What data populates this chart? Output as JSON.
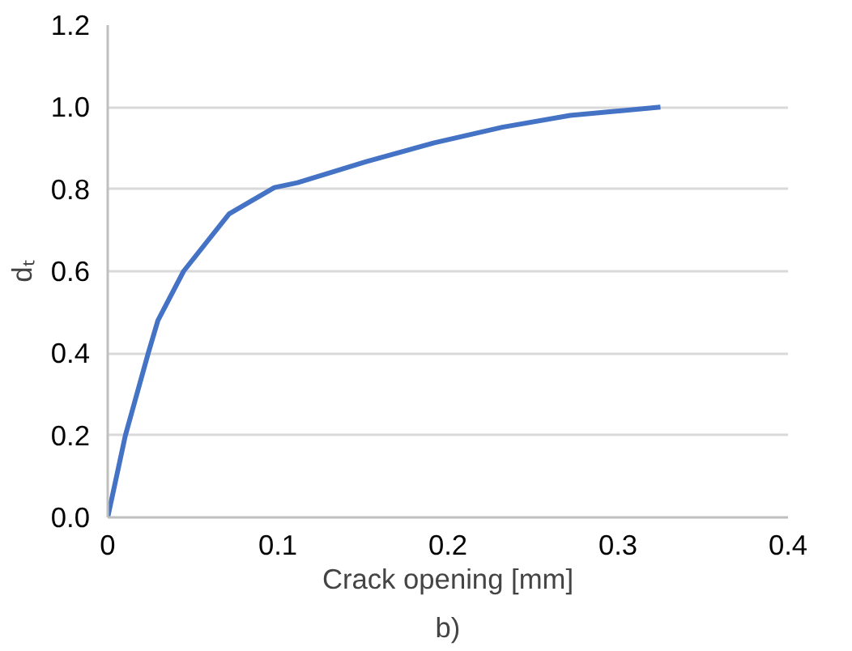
{
  "chart_data": {
    "type": "line",
    "xlabel": "Crack opening [mm]",
    "ylabel": "dₜ",
    "annotations": [
      "b)"
    ],
    "x": [
      0,
      0.0104,
      0.0238,
      0.0295,
      0.0446,
      0.0714,
      0.098,
      0.1116,
      0.152,
      0.192,
      0.232,
      0.272,
      0.325
    ],
    "series": [
      {
        "color": "#4472c4",
        "values": [
          0,
          0.2,
          0.4,
          0.48,
          0.6,
          0.74,
          0.804,
          0.816,
          0.867,
          0.913,
          0.951,
          0.98,
          1.0
        ]
      }
    ],
    "xlim": [
      0,
      0.4
    ],
    "xticks": [
      0,
      0.1,
      0.2,
      0.3,
      0.4
    ],
    "ylim": [
      0,
      1.2
    ],
    "yticks": [
      {
        "value": 0,
        "label": "0.0"
      },
      {
        "value": 0.2,
        "label": "0.2"
      },
      {
        "value": 0.4,
        "label": "0.4"
      },
      {
        "value": 0.6,
        "label": "0.6"
      },
      {
        "value": 0.8,
        "label": "0.8"
      },
      {
        "value": 1.0,
        "label": "1.0"
      },
      {
        "value": 1.2,
        "label": "1.2"
      }
    ],
    "grid": "y",
    "marker": "none",
    "line_style": "solid"
  }
}
